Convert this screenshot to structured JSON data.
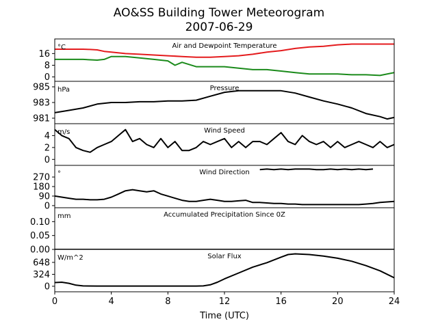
{
  "chart_data": {
    "type": "line",
    "title": "AO&SS Building Tower Meteorogram",
    "subtitle": "2007-06-29",
    "xlabel": "Time (UTC)",
    "xlim": [
      0,
      24
    ],
    "x_ticks": [
      "0",
      "4",
      "8",
      "12",
      "16",
      "20",
      "24"
    ],
    "panels": [
      {
        "name": "temperature",
        "title": "Air and Dewpoint Temperature",
        "unit": "°C",
        "ylim": [
          -3,
          26
        ],
        "yticks": [
          "16",
          "8",
          "0"
        ],
        "series": [
          {
            "color": "#e41a1c",
            "x": [
              0,
              1,
              2,
              2.5,
              3,
              3.5,
              4,
              5,
              6,
              7,
              8,
              9,
              10,
              11,
              12,
              13,
              14,
              15,
              16,
              17,
              18,
              19,
              20,
              21,
              22,
              23,
              24
            ],
            "y": [
              19,
              19,
              19,
              18.8,
              18.5,
              17.5,
              17,
              16,
              15.5,
              15,
              14.5,
              14,
              13.5,
              13.5,
              14,
              14.5,
              15.5,
              17,
              18,
              19.5,
              20.5,
              21,
              22,
              22.5,
              22.5,
              22.5,
              22.5
            ]
          },
          {
            "color": "#1a8a1a",
            "x": [
              0,
              1,
              2,
              3,
              3.5,
              4,
              5,
              6,
              7,
              8,
              8.5,
              9,
              10,
              11,
              12,
              13,
              14,
              15,
              16,
              17,
              18,
              19,
              20,
              21,
              22,
              23,
              24
            ],
            "y": [
              12,
              12,
              12,
              11.5,
              12,
              14,
              14,
              13,
              12,
              11,
              8,
              10,
              7,
              7,
              7,
              6,
              5,
              5,
              4,
              3,
              2,
              2,
              2,
              1.5,
              1.5,
              1,
              3
            ]
          }
        ]
      },
      {
        "name": "pressure",
        "title": "Pressure",
        "unit": "hPa",
        "ylim": [
          980.3,
          985.7
        ],
        "yticks": [
          "985",
          "983",
          "981"
        ],
        "series": [
          {
            "color": "#000000",
            "x": [
              0,
              1,
              2,
              3,
              4,
              5,
              6,
              7,
              8,
              9,
              10,
              11,
              12,
              13,
              14,
              15,
              16,
              17,
              18,
              19,
              20,
              21,
              22,
              23,
              23.5,
              24
            ],
            "y": [
              981.7,
              982.0,
              982.3,
              982.8,
              983.0,
              983.0,
              983.1,
              983.1,
              983.2,
              983.2,
              983.3,
              983.8,
              984.3,
              984.5,
              984.5,
              984.5,
              984.5,
              984.2,
              983.7,
              983.2,
              982.8,
              982.3,
              981.6,
              981.2,
              980.9,
              981.1
            ]
          }
        ]
      },
      {
        "name": "wind_speed",
        "title": "Wind Speed",
        "unit": "m/s",
        "ylim": [
          -1,
          6
        ],
        "yticks": [
          "4",
          "2",
          "0"
        ],
        "series": [
          {
            "color": "#000000",
            "x": [
              0,
              0.5,
              1,
              1.5,
              2,
              2.5,
              3,
              3.5,
              4,
              4.5,
              5,
              5.5,
              6,
              6.5,
              7,
              7.5,
              8,
              8.5,
              9,
              9.5,
              10,
              10.5,
              11,
              11.5,
              12,
              12.5,
              13,
              13.5,
              14,
              14.5,
              15,
              15.5,
              16,
              16.5,
              17,
              17.5,
              18,
              18.5,
              19,
              19.5,
              20,
              20.5,
              21,
              21.5,
              22,
              22.5,
              23,
              23.5,
              24
            ],
            "y": [
              5,
              4,
              3.5,
              2,
              1.5,
              1.2,
              2,
              2.5,
              3,
              4,
              5,
              3,
              3.5,
              2.5,
              2,
              3.5,
              2,
              3,
              1.5,
              1.5,
              2,
              3,
              2.5,
              3,
              3.5,
              2,
              3,
              2,
              3,
              3,
              2.5,
              3.5,
              4.5,
              3,
              2.5,
              4,
              3,
              2.5,
              3,
              2,
              3,
              2,
              2.5,
              3,
              2.5,
              2,
              3,
              2,
              2.5
            ]
          }
        ]
      },
      {
        "name": "wind_direction",
        "title": "Wind Direction",
        "unit": "°",
        "ylim": [
          -20,
          380
        ],
        "yticks": [
          "270",
          "180",
          "90",
          "0"
        ],
        "series": [
          {
            "color": "#000000",
            "x": [
              0,
              0.5,
              1,
              1.5,
              2,
              2.5,
              3,
              3.5,
              4,
              4.5,
              5,
              5.5,
              6,
              6.5,
              7,
              7.5,
              8,
              8.5,
              9,
              9.5,
              10,
              10.5,
              11,
              11.5,
              12,
              12.5,
              13,
              13.5,
              14,
              14.5,
              15,
              15.5,
              16,
              16.5,
              17,
              17.5,
              18,
              18.5,
              19,
              19.5,
              20,
              20.5,
              21,
              21.5,
              22,
              22.5,
              23,
              23.5,
              24
            ],
            "y": [
              90,
              80,
              70,
              60,
              60,
              55,
              55,
              60,
              80,
              110,
              140,
              150,
              140,
              130,
              140,
              110,
              90,
              70,
              50,
              40,
              40,
              50,
              60,
              50,
              40,
              40,
              45,
              50,
              30,
              30,
              25,
              20,
              20,
              15,
              15,
              10,
              10,
              10,
              10,
              10,
              10,
              10,
              10,
              10,
              15,
              20,
              30,
              35,
              40
            ]
          },
          {
            "color": "#000000",
            "x": [
              14.5,
              15,
              15.5,
              16,
              16.5,
              17,
              18,
              18.5,
              19,
              19.5,
              20,
              20.5,
              21,
              21.5,
              22,
              22.5
            ],
            "y": [
              340,
              345,
              340,
              345,
              340,
              345,
              345,
              340,
              340,
              345,
              340,
              345,
              340,
              345,
              340,
              345
            ]
          }
        ]
      },
      {
        "name": "precipitation",
        "title": "Accumulated Precipitation Since 0Z",
        "unit": "mm",
        "ylim": [
          0,
          0.15
        ],
        "yticks": [
          "0.10",
          "0.05",
          "0.00"
        ],
        "series": [
          {
            "color": "#000000",
            "x": [
              0,
              24
            ],
            "y": [
              0,
              0
            ]
          }
        ]
      },
      {
        "name": "solar",
        "title": "Solar Flux",
        "unit": "W/m^2",
        "ylim": [
          -150,
          1000
        ],
        "yticks": [
          "648",
          "324",
          "0"
        ],
        "series": [
          {
            "color": "#000000",
            "x": [
              0,
              0.5,
              1,
              1.5,
              2,
              3,
              4,
              6,
              8,
              10,
              10.5,
              11,
              11.5,
              12,
              13,
              14,
              15,
              16,
              16.5,
              17,
              18,
              19,
              20,
              21,
              22,
              23,
              24
            ],
            "y": [
              100,
              110,
              80,
              30,
              10,
              5,
              5,
              5,
              5,
              5,
              10,
              40,
              110,
              200,
              360,
              520,
              640,
              790,
              860,
              880,
              860,
              820,
              760,
              680,
              560,
              420,
              230
            ]
          }
        ]
      }
    ]
  }
}
